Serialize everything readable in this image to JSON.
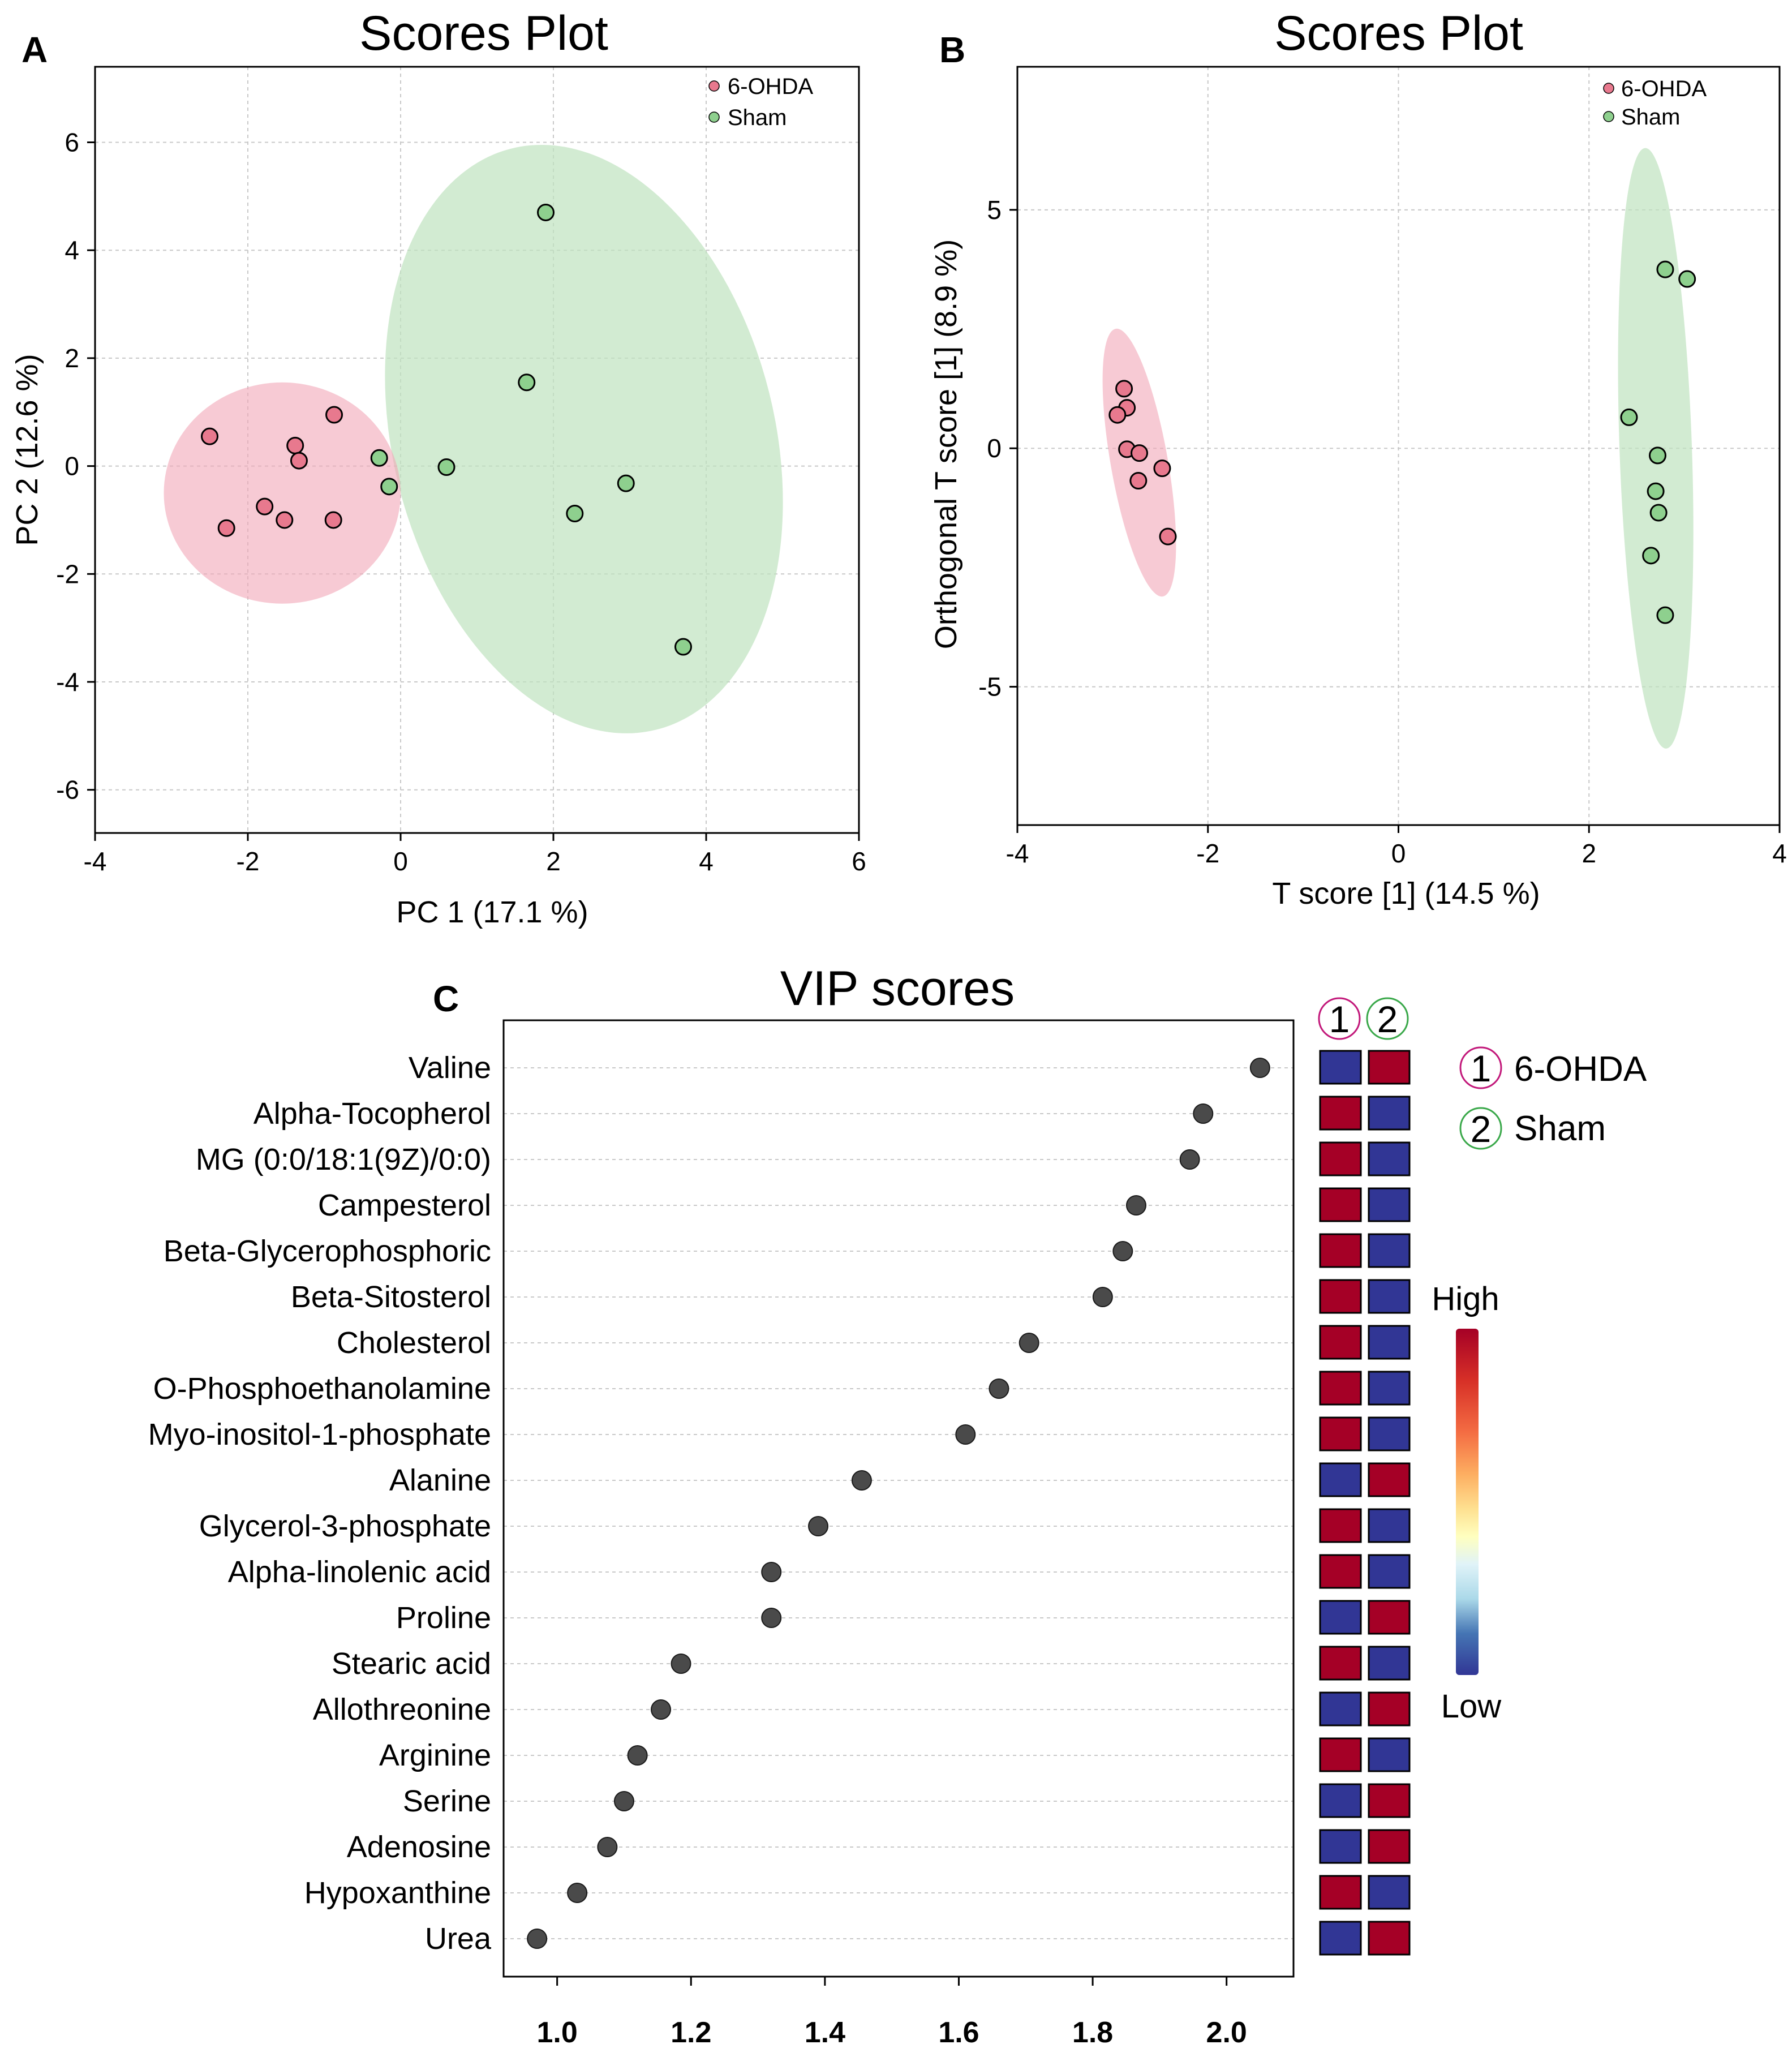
{
  "colors": {
    "sixohda_point": "#E8798E",
    "sham_point": "#8ED08E",
    "sixohda_ellipse": "#F2A7B8",
    "sham_ellipse": "#BFE3BF",
    "vip_dot": "#4a4a4a",
    "heat_high": "#A50026",
    "heat_low": "#313695",
    "circle1_outline": "#C2187A",
    "circle2_outline": "#3AA84A"
  },
  "chart_data": [
    {
      "panel": "A",
      "type": "scatter",
      "title": "Scores Plot",
      "xlabel": "PC 1 (17.1 %)",
      "ylabel": "PC 2 (12.6 %)",
      "xlim": [
        -4,
        6
      ],
      "ylim": [
        -6.8,
        7.4
      ],
      "xticks": [
        "-4",
        "-2",
        "0",
        "2",
        "4",
        "6"
      ],
      "xtick_values": [
        -4,
        -2,
        0,
        2,
        4,
        6
      ],
      "yticks": [
        "6",
        "4",
        "2",
        "0",
        "-2",
        "-4",
        "-6"
      ],
      "ytick_values": [
        6,
        4,
        2,
        0,
        -2,
        -4,
        -6
      ],
      "legend": [
        "6-OHDA",
        "Sham"
      ],
      "series": [
        {
          "name": "6-OHDA",
          "points": [
            [
              -2.5,
              0.55
            ],
            [
              -2.28,
              -1.15
            ],
            [
              -1.78,
              -0.75
            ],
            [
              -1.52,
              -1.0
            ],
            [
              -1.38,
              0.38
            ],
            [
              -1.33,
              0.1
            ],
            [
              -0.87,
              0.95
            ],
            [
              -0.88,
              -1.0
            ]
          ],
          "ellipse": {
            "cx": -1.55,
            "cy": -0.5,
            "rx": 1.55,
            "ry": 2.05,
            "angle": 0
          }
        },
        {
          "name": "Sham",
          "points": [
            [
              1.9,
              4.7
            ],
            [
              1.65,
              1.55
            ],
            [
              -0.28,
              0.15
            ],
            [
              -0.15,
              -0.38
            ],
            [
              0.6,
              -0.02
            ],
            [
              2.95,
              -0.32
            ],
            [
              2.28,
              -0.88
            ],
            [
              3.7,
              -3.35
            ]
          ],
          "ellipse": {
            "cx": 2.4,
            "cy": 0.5,
            "rx": 2.5,
            "ry": 5.55,
            "angle": -14
          }
        }
      ]
    },
    {
      "panel": "B",
      "type": "scatter",
      "title": "Scores Plot",
      "xlabel": "T score [1] (14.5 %)",
      "ylabel": "Orthogonal T score [1] (8.9 %)",
      "xlim": [
        -4,
        4
      ],
      "ylim": [
        -7.9,
        8.0
      ],
      "xticks": [
        "-4",
        "-2",
        "0",
        "2",
        "4"
      ],
      "xtick_values": [
        -4,
        -2,
        0,
        2,
        4
      ],
      "yticks": [
        "5",
        "0",
        "-5"
      ],
      "ytick_values": [
        5,
        0,
        -5
      ],
      "legend": [
        "6-OHDA",
        "Sham"
      ],
      "series": [
        {
          "name": "6-OHDA",
          "points": [
            [
              -2.88,
              1.25
            ],
            [
              -2.85,
              0.85
            ],
            [
              -2.95,
              0.7
            ],
            [
              -2.85,
              -0.02
            ],
            [
              -2.72,
              -0.1
            ],
            [
              -2.48,
              -0.42
            ],
            [
              -2.73,
              -0.68
            ],
            [
              -2.42,
              -1.85
            ]
          ],
          "ellipse": {
            "cx": -2.72,
            "cy": -0.3,
            "rx": 0.3,
            "ry": 2.85,
            "angle": -10
          }
        },
        {
          "name": "Sham",
          "points": [
            [
              2.8,
              3.75
            ],
            [
              3.03,
              3.55
            ],
            [
              2.42,
              0.65
            ],
            [
              2.72,
              -0.15
            ],
            [
              2.7,
              -0.9
            ],
            [
              2.73,
              -1.35
            ],
            [
              2.65,
              -2.25
            ],
            [
              2.8,
              -3.5
            ]
          ],
          "ellipse": {
            "cx": 2.7,
            "cy": 0.0,
            "rx": 0.38,
            "ry": 6.3,
            "angle": -2
          }
        }
      ]
    },
    {
      "panel": "C",
      "type": "scatter",
      "title": "VIP scores",
      "xlabel": "",
      "ylabel": "",
      "xlim": [
        0.92,
        2.1
      ],
      "xticks": [
        "1.0",
        "1.2",
        "1.4",
        "1.6",
        "1.8",
        "2.0"
      ],
      "xtick_values": [
        1.0,
        1.2,
        1.4,
        1.6,
        1.8,
        2.0
      ],
      "categories": [
        "Valine",
        "Alpha-Tocopherol",
        "MG (0:0/18:1(9Z)/0:0)",
        "Campesterol",
        "Beta-Glycerophosphoric",
        "Beta-Sitosterol",
        "Cholesterol",
        "O-Phosphoethanolamine",
        "Myo-inositol-1-phosphate",
        "Alanine",
        "Glycerol-3-phosphate",
        "Alpha-linolenic acid",
        "Proline",
        "Stearic acid",
        "Allothreonine",
        "Arginine",
        "Serine",
        "Adenosine",
        "Hypoxanthine",
        "Urea"
      ],
      "values": [
        2.05,
        1.965,
        1.945,
        1.865,
        1.845,
        1.815,
        1.705,
        1.66,
        1.61,
        1.455,
        1.39,
        1.32,
        1.32,
        1.185,
        1.155,
        1.12,
        1.1,
        1.075,
        1.03,
        0.97
      ],
      "heatmap_columns": [
        "1",
        "2"
      ],
      "heatmap": [
        [
          "Low",
          "High"
        ],
        [
          "High",
          "Low"
        ],
        [
          "High",
          "Low"
        ],
        [
          "High",
          "Low"
        ],
        [
          "High",
          "Low"
        ],
        [
          "High",
          "Low"
        ],
        [
          "High",
          "Low"
        ],
        [
          "High",
          "Low"
        ],
        [
          "High",
          "Low"
        ],
        [
          "Low",
          "High"
        ],
        [
          "High",
          "Low"
        ],
        [
          "High",
          "Low"
        ],
        [
          "Low",
          "High"
        ],
        [
          "High",
          "Low"
        ],
        [
          "Low",
          "High"
        ],
        [
          "High",
          "Low"
        ],
        [
          "Low",
          "High"
        ],
        [
          "Low",
          "High"
        ],
        [
          "High",
          "Low"
        ],
        [
          "Low",
          "High"
        ]
      ],
      "group_legend": [
        {
          "num": "1",
          "label": "6-OHDA"
        },
        {
          "num": "2",
          "label": "Sham"
        }
      ],
      "color_scale": {
        "high": "High",
        "low": "Low"
      }
    }
  ],
  "panel_letters": [
    "A",
    "B",
    "C"
  ]
}
